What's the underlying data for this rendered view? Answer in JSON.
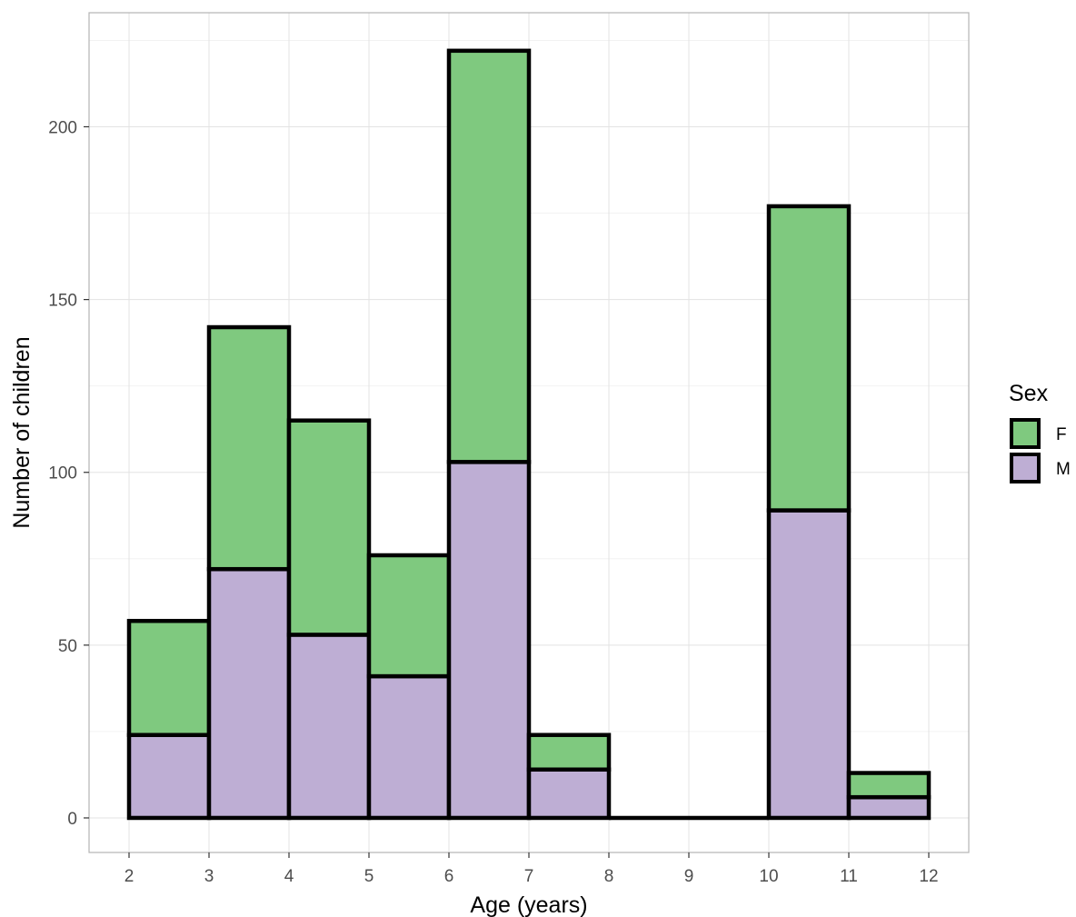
{
  "chart_data": {
    "type": "bar",
    "subtype": "stacked-histogram",
    "xlabel": "Age (years)",
    "ylabel": "Number of children",
    "x_ticks": [
      2,
      3,
      4,
      5,
      6,
      7,
      8,
      9,
      10,
      11,
      12
    ],
    "y_ticks": [
      0,
      50,
      100,
      150,
      200
    ],
    "xlim": [
      1.5,
      12.5
    ],
    "ylim": [
      -10,
      233
    ],
    "grid": true,
    "legend": {
      "title": "Sex",
      "placement": "right"
    },
    "bins": [
      {
        "x0": 2,
        "x1": 3,
        "M": 24,
        "F": 33
      },
      {
        "x0": 3,
        "x1": 4,
        "M": 72,
        "F": 70
      },
      {
        "x0": 4,
        "x1": 5,
        "M": 53,
        "F": 62
      },
      {
        "x0": 5,
        "x1": 6,
        "M": 41,
        "F": 35
      },
      {
        "x0": 6,
        "x1": 7,
        "M": 103,
        "F": 119
      },
      {
        "x0": 7,
        "x1": 8,
        "M": 14,
        "F": 10
      },
      {
        "x0": 8,
        "x1": 9,
        "M": 0,
        "F": 0
      },
      {
        "x0": 9,
        "x1": 10,
        "M": 0,
        "F": 0
      },
      {
        "x0": 10,
        "x1": 11,
        "M": 89,
        "F": 88
      },
      {
        "x0": 11,
        "x1": 12,
        "M": 6,
        "F": 7
      }
    ],
    "series": [
      {
        "name": "F",
        "color": "#7FC97F"
      },
      {
        "name": "M",
        "color": "#BEAED4"
      }
    ]
  }
}
